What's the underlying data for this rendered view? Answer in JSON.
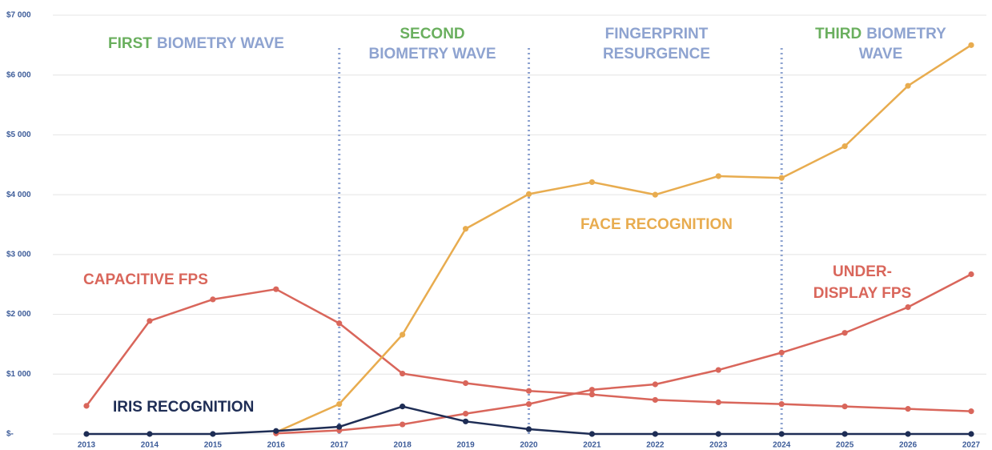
{
  "chart_data": {
    "type": "line",
    "categories": [
      "2013",
      "2014",
      "2015",
      "2016",
      "2017",
      "2018",
      "2019",
      "2020",
      "2021",
      "2022",
      "2023",
      "2024",
      "2025",
      "2026",
      "2027"
    ],
    "ylim": [
      0,
      7000
    ],
    "yticks": [
      {
        "value": 0,
        "label": "$-"
      },
      {
        "value": 1000,
        "label": "$1 000"
      },
      {
        "value": 2000,
        "label": "$2 000"
      },
      {
        "value": 3000,
        "label": "$3 000"
      },
      {
        "value": 4000,
        "label": "$4 000"
      },
      {
        "value": 5000,
        "label": "$5 000"
      },
      {
        "value": 6000,
        "label": "$6 000"
      },
      {
        "value": 7000,
        "label": "$7 000"
      }
    ],
    "grid": true,
    "series": [
      {
        "name": "CAPACITIVE FPS",
        "color": "#d9665b",
        "values": [
          470,
          1890,
          2250,
          2420,
          1850,
          1010,
          850,
          720,
          660,
          570,
          530,
          500,
          460,
          420,
          380
        ]
      },
      {
        "name": "FACE RECOGNITION",
        "color": "#e8ac4f",
        "values": [
          null,
          null,
          null,
          30,
          500,
          1660,
          3430,
          4010,
          4210,
          4000,
          4310,
          4280,
          4810,
          5820,
          6500
        ]
      },
      {
        "name": "UNDER-DISPLAY FPS",
        "color": "#d9665b",
        "values": [
          null,
          null,
          null,
          10,
          60,
          160,
          340,
          500,
          740,
          830,
          1070,
          1360,
          1690,
          2120,
          2670
        ]
      },
      {
        "name": "IRIS RECOGNITION",
        "color": "#1e2d55",
        "values": [
          0,
          0,
          0,
          50,
          120,
          460,
          210,
          80,
          0,
          0,
          0,
          0,
          0,
          0,
          0
        ]
      }
    ],
    "dividers": [
      "2017",
      "2020",
      "2024"
    ],
    "divider_color": "#8ea3d0",
    "annotations": [
      {
        "lines": [
          [
            {
              "text": "FIRST",
              "color": "#6aaf5e"
            },
            {
              "text": "BIOMETRY WAVE",
              "color": "#8ea3d0"
            }
          ]
        ]
      },
      {
        "lines": [
          [
            {
              "text": "SECOND",
              "color": "#6aaf5e"
            }
          ],
          [
            {
              "text": "BIOMETRY WAVE",
              "color": "#8ea3d0"
            }
          ]
        ]
      },
      {
        "lines": [
          [
            {
              "text": "FINGERPRINT",
              "color": "#8ea3d0"
            }
          ],
          [
            {
              "text": "RESURGENCE",
              "color": "#8ea3d0"
            }
          ]
        ]
      },
      {
        "lines": [
          [
            {
              "text": "THIRD",
              "color": "#6aaf5e"
            },
            {
              "text": "BIOMETRY",
              "color": "#8ea3d0"
            }
          ],
          [
            {
              "text": "WAVE",
              "color": "#8ea3d0"
            }
          ]
        ]
      }
    ]
  }
}
